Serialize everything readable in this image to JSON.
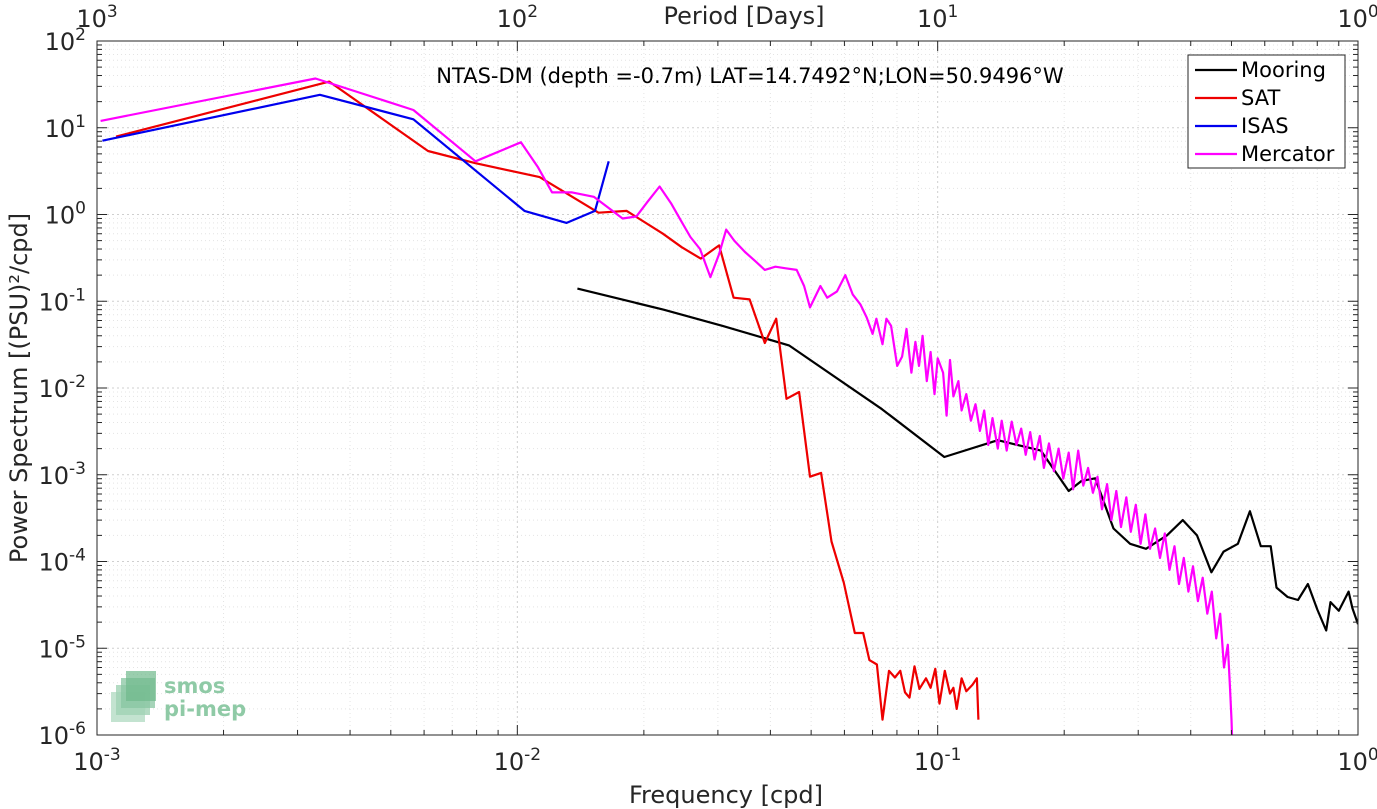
{
  "chart_data": {
    "type": "line",
    "title": "NTAS-DM (depth =-0.7m) LAT=14.7492°N;LON=50.9496°W",
    "xlabel": "Frequency [cpd]",
    "ylabel": "Power Spectrum [(PSU)²/cpd]",
    "top_xlabel": "Period [Days]",
    "x_scale": "log",
    "y_scale": "log",
    "xlim": [
      0.001,
      1
    ],
    "ylim": [
      1e-06,
      100
    ],
    "grid": true,
    "legend_position": "top-right",
    "x_ticks": [
      {
        "value": 0.001,
        "base": "10",
        "exp": "-3"
      },
      {
        "value": 0.01,
        "base": "10",
        "exp": "-2"
      },
      {
        "value": 0.1,
        "base": "10",
        "exp": "-1"
      },
      {
        "value": 1,
        "base": "10",
        "exp": "0"
      }
    ],
    "y_ticks": [
      {
        "value": 100,
        "base": "10",
        "exp": "2"
      },
      {
        "value": 10,
        "base": "10",
        "exp": "1"
      },
      {
        "value": 1,
        "base": "10",
        "exp": "0"
      },
      {
        "value": 0.1,
        "base": "10",
        "exp": "-1"
      },
      {
        "value": 0.01,
        "base": "10",
        "exp": "-2"
      },
      {
        "value": 0.001,
        "base": "10",
        "exp": "-3"
      },
      {
        "value": 0.0001,
        "base": "10",
        "exp": "-4"
      },
      {
        "value": 1e-05,
        "base": "10",
        "exp": "-5"
      },
      {
        "value": 1e-06,
        "base": "10",
        "exp": "-6"
      }
    ],
    "top_ticks": [
      {
        "value": 0.001,
        "base": "10",
        "exp": "3"
      },
      {
        "value": 0.01,
        "base": "10",
        "exp": "2"
      },
      {
        "value": 0.1,
        "base": "10",
        "exp": "1"
      },
      {
        "value": 1,
        "base": "10",
        "exp": "0"
      }
    ],
    "series": [
      {
        "name": "Mooring",
        "color": "#000000",
        "points": [
          [
            0.0139,
            0.14
          ],
          [
            0.0223,
            0.08
          ],
          [
            0.0308,
            0.052
          ],
          [
            0.0443,
            0.031
          ],
          [
            0.0737,
            0.0057
          ],
          [
            0.1037,
            0.0016
          ],
          [
            0.139,
            0.0025
          ],
          [
            0.176,
            0.0019
          ],
          [
            0.205,
            0.00065
          ],
          [
            0.22,
            0.00085
          ],
          [
            0.237,
            0.00091
          ],
          [
            0.262,
            0.00024
          ],
          [
            0.287,
            0.00016
          ],
          [
            0.313,
            0.00014
          ],
          [
            0.351,
            0.0002
          ],
          [
            0.383,
            0.0003
          ],
          [
            0.414,
            0.0002
          ],
          [
            0.448,
            7.5e-05
          ],
          [
            0.479,
            0.00013
          ],
          [
            0.518,
            0.00016
          ],
          [
            0.553,
            0.00038
          ],
          [
            0.587,
            0.00015
          ],
          [
            0.62,
            0.00015
          ],
          [
            0.64,
            5e-05
          ],
          [
            0.68,
            3.9e-05
          ],
          [
            0.72,
            3.6e-05
          ],
          [
            0.76,
            5.5e-05
          ],
          [
            0.8,
            2.8e-05
          ],
          [
            0.84,
            1.6e-05
          ],
          [
            0.86,
            3.4e-05
          ],
          [
            0.9,
            2.7e-05
          ],
          [
            0.95,
            4.5e-05
          ],
          [
            0.97,
            2.9e-05
          ],
          [
            1.0,
            1.9e-05
          ]
        ]
      },
      {
        "name": "SAT",
        "color": "#ee0000",
        "points": [
          [
            0.00111,
            7.9
          ],
          [
            0.00357,
            34
          ],
          [
            0.00613,
            5.4
          ],
          [
            0.00795,
            3.9
          ],
          [
            0.0113,
            2.7
          ],
          [
            0.0156,
            1.05
          ],
          [
            0.0182,
            1.1
          ],
          [
            0.0222,
            0.6
          ],
          [
            0.0246,
            0.42
          ],
          [
            0.0273,
            0.31
          ],
          [
            0.0302,
            0.44
          ],
          [
            0.0327,
            0.11
          ],
          [
            0.0357,
            0.105
          ],
          [
            0.0388,
            0.033
          ],
          [
            0.0413,
            0.063
          ],
          [
            0.0437,
            0.0075
          ],
          [
            0.0468,
            0.009
          ],
          [
            0.0497,
            0.00095
          ],
          [
            0.0528,
            0.00105
          ],
          [
            0.0559,
            0.00017
          ],
          [
            0.0598,
            5.7e-05
          ],
          [
            0.0635,
            1.5e-05
          ],
          [
            0.0665,
            1.5e-05
          ],
          [
            0.0688,
            7.3e-06
          ],
          [
            0.0717,
            6.5e-06
          ],
          [
            0.0739,
            1.5e-06
          ],
          [
            0.0766,
            5.5e-06
          ],
          [
            0.0791,
            4.6e-06
          ],
          [
            0.0815,
            5.5e-06
          ],
          [
            0.0836,
            3.1e-06
          ],
          [
            0.0857,
            2.7e-06
          ],
          [
            0.0881,
            6.2e-06
          ],
          [
            0.0905,
            3.4e-06
          ],
          [
            0.0938,
            4.5e-06
          ],
          [
            0.0962,
            3.5e-06
          ],
          [
            0.0987,
            5.8e-06
          ],
          [
            0.101,
            2.3e-06
          ],
          [
            0.104,
            5.5e-06
          ],
          [
            0.107,
            3e-06
          ],
          [
            0.109,
            3.5e-06
          ],
          [
            0.111,
            2e-06
          ],
          [
            0.114,
            4.5e-06
          ],
          [
            0.117,
            3.2e-06
          ],
          [
            0.121,
            3.8e-06
          ],
          [
            0.124,
            4.5e-06
          ],
          [
            0.125,
            1.5e-06
          ]
        ]
      },
      {
        "name": "ISAS",
        "color": "#0000ee",
        "points": [
          [
            0.00103,
            7.1
          ],
          [
            0.00339,
            24
          ],
          [
            0.00566,
            12.5
          ],
          [
            0.0104,
            1.1
          ],
          [
            0.0131,
            0.8
          ],
          [
            0.0153,
            1.1
          ],
          [
            0.0165,
            4.1
          ]
        ]
      },
      {
        "name": "Mercator",
        "color": "#ff00ff",
        "points": [
          [
            0.00102,
            12
          ],
          [
            0.00331,
            37
          ],
          [
            0.00566,
            16
          ],
          [
            0.00795,
            4.1
          ],
          [
            0.0102,
            6.8
          ],
          [
            0.0112,
            3.5
          ],
          [
            0.0121,
            1.8
          ],
          [
            0.0135,
            1.8
          ],
          [
            0.0152,
            1.6
          ],
          [
            0.0178,
            0.9
          ],
          [
            0.0192,
            0.95
          ],
          [
            0.0204,
            1.4
          ],
          [
            0.0218,
            2.1
          ],
          [
            0.0232,
            1.35
          ],
          [
            0.0245,
            0.85
          ],
          [
            0.0258,
            0.55
          ],
          [
            0.0272,
            0.4
          ],
          [
            0.0288,
            0.19
          ],
          [
            0.0302,
            0.35
          ],
          [
            0.0314,
            0.67
          ],
          [
            0.0328,
            0.5
          ],
          [
            0.0348,
            0.37
          ],
          [
            0.0368,
            0.29
          ],
          [
            0.0388,
            0.23
          ],
          [
            0.0411,
            0.25
          ],
          [
            0.0435,
            0.24
          ],
          [
            0.0462,
            0.23
          ],
          [
            0.0481,
            0.15
          ],
          [
            0.0497,
            0.085
          ],
          [
            0.0526,
            0.15
          ],
          [
            0.0546,
            0.11
          ],
          [
            0.0576,
            0.13
          ],
          [
            0.0603,
            0.2
          ],
          [
            0.0628,
            0.12
          ],
          [
            0.0655,
            0.092
          ],
          [
            0.0678,
            0.065
          ],
          [
            0.07,
            0.042
          ],
          [
            0.0715,
            0.063
          ],
          [
            0.0739,
            0.032
          ],
          [
            0.0755,
            0.063
          ],
          [
            0.0775,
            0.052
          ],
          [
            0.0801,
            0.018
          ],
          [
            0.0823,
            0.023
          ],
          [
            0.0843,
            0.048
          ],
          [
            0.0866,
            0.015
          ],
          [
            0.0885,
            0.034
          ],
          [
            0.0903,
            0.018
          ],
          [
            0.0921,
            0.04
          ],
          [
            0.0942,
            0.012
          ],
          [
            0.0962,
            0.026
          ],
          [
            0.0983,
            0.0085
          ],
          [
            0.1,
            0.022
          ],
          [
            0.103,
            0.015
          ],
          [
            0.105,
            0.0048
          ],
          [
            0.107,
            0.021
          ],
          [
            0.109,
            0.008
          ],
          [
            0.112,
            0.012
          ],
          [
            0.114,
            0.0055
          ],
          [
            0.117,
            0.0085
          ],
          [
            0.12,
            0.0042
          ],
          [
            0.123,
            0.0065
          ],
          [
            0.126,
            0.0032
          ],
          [
            0.129,
            0.0055
          ],
          [
            0.132,
            0.0022
          ],
          [
            0.135,
            0.0045
          ],
          [
            0.139,
            0.002
          ],
          [
            0.142,
            0.0042
          ],
          [
            0.146,
            0.0019
          ],
          [
            0.15,
            0.0041
          ],
          [
            0.154,
            0.0022
          ],
          [
            0.158,
            0.0034
          ],
          [
            0.162,
            0.0017
          ],
          [
            0.166,
            0.0031
          ],
          [
            0.17,
            0.0015
          ],
          [
            0.175,
            0.0028
          ],
          [
            0.179,
            0.0012
          ],
          [
            0.184,
            0.0023
          ],
          [
            0.189,
            0.0011
          ],
          [
            0.194,
            0.002
          ],
          [
            0.199,
            0.0009
          ],
          [
            0.205,
            0.0018
          ],
          [
            0.21,
            0.00068
          ],
          [
            0.216,
            0.0019
          ],
          [
            0.222,
            0.00075
          ],
          [
            0.228,
            0.0012
          ],
          [
            0.234,
            0.00062
          ],
          [
            0.24,
            0.00095
          ],
          [
            0.246,
            0.0004
          ],
          [
            0.253,
            0.00078
          ],
          [
            0.259,
            0.0003
          ],
          [
            0.266,
            0.00065
          ],
          [
            0.273,
            0.00025
          ],
          [
            0.281,
            0.00055
          ],
          [
            0.288,
            0.00022
          ],
          [
            0.296,
            0.00045
          ],
          [
            0.304,
            0.00016
          ],
          [
            0.312,
            0.00035
          ],
          [
            0.32,
            0.00014
          ],
          [
            0.329,
            0.00024
          ],
          [
            0.338,
            0.00011
          ],
          [
            0.347,
            0.00021
          ],
          [
            0.356,
            8e-05
          ],
          [
            0.366,
            0.00015
          ],
          [
            0.375,
            5.5e-05
          ],
          [
            0.385,
            0.00011
          ],
          [
            0.395,
            4.5e-05
          ],
          [
            0.405,
            8.8e-05
          ],
          [
            0.416,
            3.5e-05
          ],
          [
            0.427,
            6.5e-05
          ],
          [
            0.438,
            2.5e-05
          ],
          [
            0.449,
            4.5e-05
          ],
          [
            0.46,
            1.3e-05
          ],
          [
            0.47,
            2.5e-05
          ],
          [
            0.48,
            6e-06
          ],
          [
            0.49,
            1.1e-05
          ],
          [
            0.496,
            3.5e-06
          ],
          [
            0.5,
            1.5e-06
          ],
          [
            0.502,
            8.5e-07
          ]
        ]
      }
    ]
  },
  "logo": {
    "line1": "smos",
    "line2": "pi-mep"
  }
}
